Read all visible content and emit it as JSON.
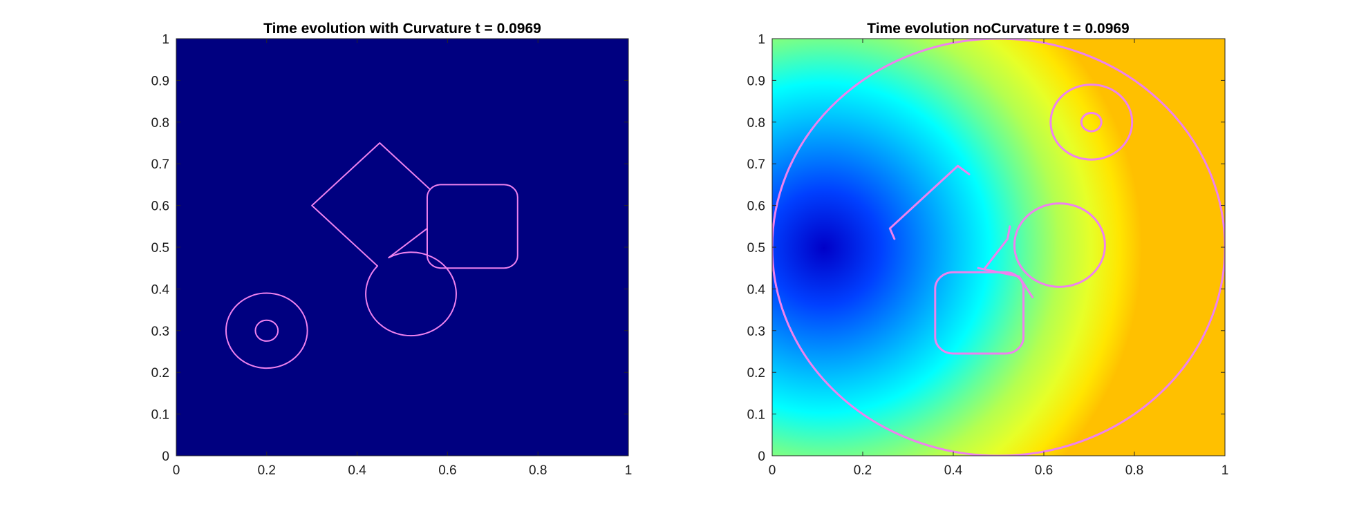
{
  "chart_data": [
    {
      "type": "heatmap",
      "title": "Time evolution with Curvature t = 0.0969",
      "xlabel": "",
      "ylabel": "",
      "xlim": [
        0,
        1
      ],
      "ylim": [
        0,
        1
      ],
      "xticks": [
        "0",
        "0.2",
        "0.4",
        "0.6",
        "0.8",
        "1"
      ],
      "yticks": [
        "0",
        "0.1",
        "0.2",
        "0.3",
        "0.4",
        "0.5",
        "0.6",
        "0.7",
        "0.8",
        "0.9",
        "1"
      ],
      "background": "#000080",
      "contour_color": "#ee82ee",
      "contours": [
        {
          "shape": "ellipse",
          "cx": 0.2,
          "cy": 0.3,
          "rx": 0.09,
          "ry": 0.09
        },
        {
          "shape": "ellipse",
          "cx": 0.2,
          "cy": 0.3,
          "rx": 0.025,
          "ry": 0.025
        },
        {
          "shape": "polyline",
          "points": [
            [
              0.56,
              0.64
            ],
            [
              0.45,
              0.75
            ],
            [
              0.3,
              0.6
            ],
            [
              0.445,
              0.455
            ]
          ]
        },
        {
          "shape": "arc",
          "cx": 0.5,
          "cy": 0.38,
          "rx": 0.1,
          "ry": 0.1,
          "from": [
            0.445,
            0.455
          ],
          "to": [
            0.47,
            0.475
          ],
          "large": 1
        },
        {
          "shape": "polyline",
          "points": [
            [
              0.47,
              0.475
            ],
            [
              0.555,
              0.545
            ],
            [
              0.555,
              0.48
            ]
          ]
        },
        {
          "shape": "roundrect",
          "x0": 0.555,
          "y0": 0.45,
          "x1": 0.755,
          "y1": 0.65,
          "r": 0.03
        }
      ]
    },
    {
      "type": "heatmap",
      "title": "Time evolution noCurvature t = 0.0969",
      "xlabel": "",
      "ylabel": "",
      "xlim": [
        0,
        1
      ],
      "ylim": [
        0,
        1
      ],
      "xticks": [
        "0",
        "0.2",
        "0.4",
        "0.6",
        "0.8",
        "1"
      ],
      "yticks": [
        "0",
        "0.1",
        "0.2",
        "0.3",
        "0.4",
        "0.5",
        "0.6",
        "0.7",
        "0.8",
        "0.9",
        "1"
      ],
      "colormap": [
        "#0000c8",
        "#0040ff",
        "#00c8ff",
        "#00ffff",
        "#66ff99",
        "#b4ff50",
        "#e6ff28",
        "#ffe600",
        "#ffc000"
      ],
      "field_center": [
        0.6,
        0.5
      ],
      "contour_color": "#ee82ee",
      "contours": [
        {
          "shape": "ellipse",
          "cx": 0.5,
          "cy": 0.5,
          "rx": 0.5,
          "ry": 0.5
        },
        {
          "shape": "ellipse",
          "cx": 0.705,
          "cy": 0.8,
          "rx": 0.09,
          "ry": 0.09
        },
        {
          "shape": "ellipse",
          "cx": 0.705,
          "cy": 0.8,
          "rx": 0.022,
          "ry": 0.022
        },
        {
          "shape": "polyline",
          "points": [
            [
              0.27,
              0.52
            ],
            [
              0.26,
              0.545
            ],
            [
              0.41,
              0.695
            ],
            [
              0.435,
              0.675
            ]
          ]
        },
        {
          "shape": "polyline",
          "points": [
            [
              0.47,
              0.45
            ],
            [
              0.52,
              0.52
            ],
            [
              0.525,
              0.55
            ]
          ]
        },
        {
          "shape": "ellipse",
          "cx": 0.635,
          "cy": 0.505,
          "rx": 0.1,
          "ry": 0.1
        },
        {
          "shape": "polyline",
          "points": [
            [
              0.455,
              0.45
            ],
            [
              0.545,
              0.43
            ],
            [
              0.575,
              0.38
            ]
          ]
        },
        {
          "shape": "roundrect",
          "x0": 0.36,
          "y0": 0.245,
          "x1": 0.555,
          "y1": 0.44,
          "r": 0.04
        }
      ]
    }
  ]
}
